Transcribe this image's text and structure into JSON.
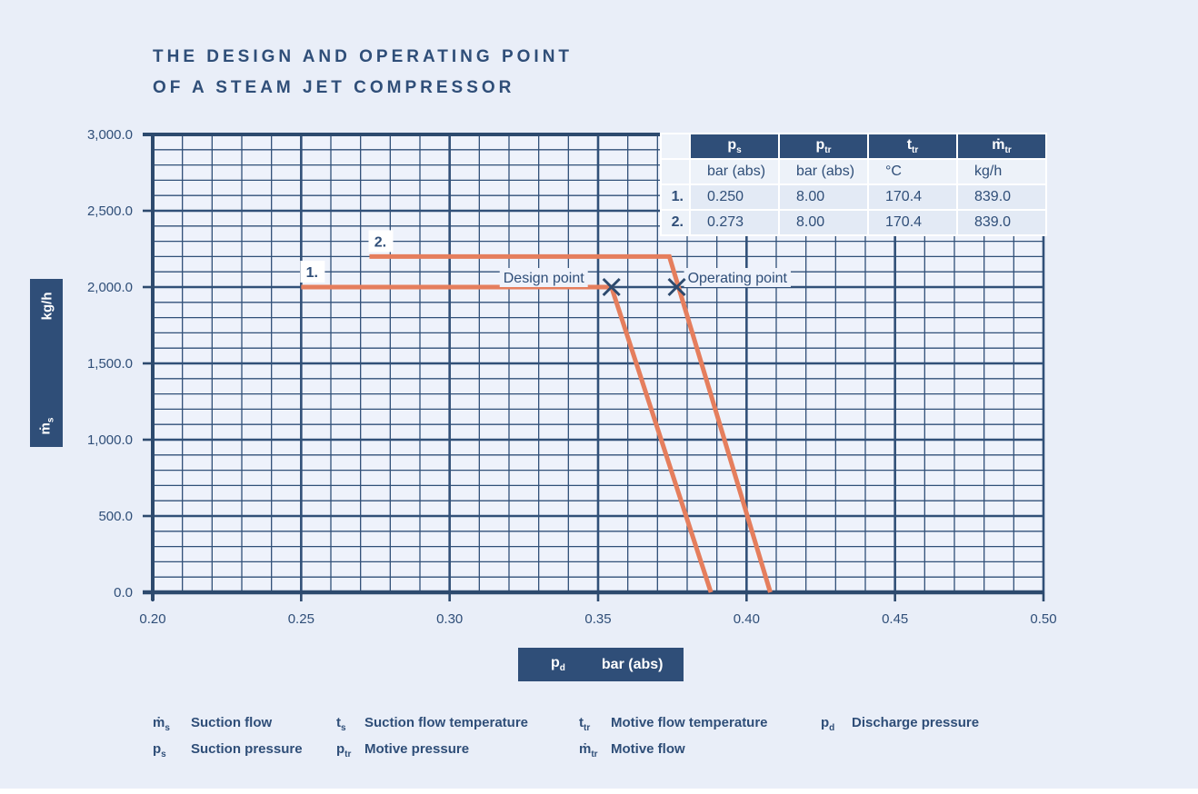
{
  "colors": {
    "page_bg": "#e9eef8",
    "plot_bg": "#eef2fb",
    "grid": "#315078",
    "axis": "#2d4a6e",
    "curve": "#e57e5d",
    "marker": "#2d4a6e",
    "dark_text": "#2f4e78",
    "table_header_bg": "#2f4e78",
    "cell_bg": "#e3eaf5",
    "cell_bg_light": "#edf2f9"
  },
  "title": {
    "line1": "THE DESIGN AND OPERATING POINT",
    "line2": "OF A STEAM JET COMPRESSOR"
  },
  "y_axis_box": {
    "symbol_base": "ṁ",
    "symbol_sub": "s",
    "unit": "kg/h"
  },
  "x_axis_box": {
    "symbol_base": "p",
    "symbol_sub": "d",
    "unit": "bar (abs)"
  },
  "table": {
    "headers": [
      {
        "base": "p",
        "sub": "s"
      },
      {
        "base": "p",
        "sub": "tr"
      },
      {
        "base": "t",
        "sub": "tr"
      },
      {
        "base": "ṁ",
        "sub": "tr"
      }
    ],
    "units": [
      "bar (abs)",
      "bar (abs)",
      "°C",
      "kg/h"
    ],
    "rows": [
      {
        "label": "1.",
        "values": [
          "0.250",
          "8.00",
          "170.4",
          "839.0"
        ]
      },
      {
        "label": "2.",
        "values": [
          "0.273",
          "8.00",
          "170.4",
          "839.0"
        ]
      }
    ]
  },
  "legend": {
    "columns": [
      {
        "items": [
          {
            "base": "ṁ",
            "sub": "s",
            "text": "Suction flow"
          },
          {
            "base": "p",
            "sub": "s",
            "text": "Suction pressure"
          }
        ]
      },
      {
        "items": [
          {
            "base": "t",
            "sub": "s",
            "text": "Suction flow temperature"
          },
          {
            "base": "p",
            "sub": "tr",
            "text": "Motive pressure"
          }
        ]
      },
      {
        "items": [
          {
            "base": "t",
            "sub": "tr",
            "text": "Motive flow temperature"
          },
          {
            "base": "ṁ",
            "sub": "tr",
            "text": "Motive flow"
          }
        ]
      },
      {
        "items": [
          {
            "base": "p",
            "sub": "d",
            "text": "Discharge pressure"
          }
        ]
      }
    ]
  },
  "chart_data": {
    "type": "line",
    "title": "The design and operating point of a steam jet compressor",
    "xlabel": "p_d bar (abs)",
    "ylabel": "ṁ_s kg/h",
    "grid": true,
    "legend_position": "none",
    "x_axis": {
      "min": 0.2,
      "max": 0.5,
      "major_step": 0.05,
      "minor_step": 0.01,
      "tick_labels": [
        "0.20",
        "0.25",
        "0.30",
        "0.35",
        "0.40",
        "0.45",
        "0.50"
      ]
    },
    "y_axis": {
      "min": 0,
      "max": 3000,
      "major_step": 500,
      "minor_step": 100,
      "tick_labels": [
        "0.0",
        "500.0",
        "1,000.0",
        "1,500.0",
        "2,000.0",
        "2,500.0",
        "3,000.0"
      ]
    },
    "series": [
      {
        "name": "1.",
        "points": [
          [
            0.25,
            2000
          ],
          [
            0.3545,
            2000
          ],
          [
            0.388,
            0
          ]
        ]
      },
      {
        "name": "2.",
        "points": [
          [
            0.273,
            2200
          ],
          [
            0.374,
            2200
          ],
          [
            0.408,
            0
          ]
        ]
      }
    ],
    "markers": [
      {
        "label": "Design point",
        "x": 0.3545,
        "y": 2000,
        "label_side": "left"
      },
      {
        "label": "Operating point",
        "x": 0.3765,
        "y": 2000,
        "label_side": "right"
      }
    ]
  }
}
